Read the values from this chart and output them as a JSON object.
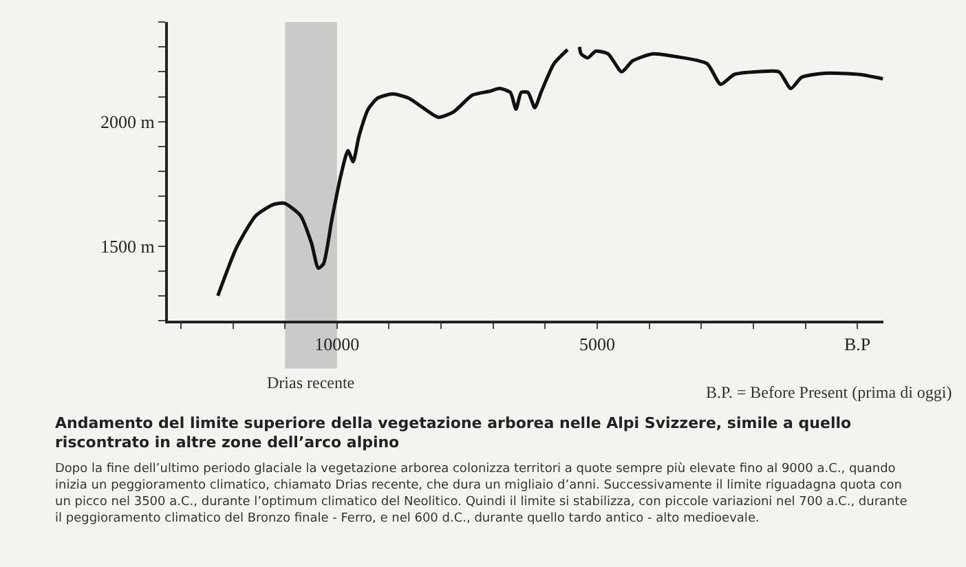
{
  "chart_data": {
    "type": "line",
    "title": "Andamento del limite superiore della vegetazione arborea nelle Alpi Svizzere, simile a quello riscontrato in altre zone dell’arco alpino",
    "subtitle": "Dopo la fine dell’ultimo periodo glaciale la vegetazione arborea colonizza territori a quote sempre più elevate fino al 9000 a.C., quando inizia un peggioramento climatico, chiamato Drias recente, che dura un migliaio d’anni. Successivamente il limite riguadagna quota con un picco nel 3500 a.C., durante l’optimum climatico del Neolitico. Quindi il limite si stabilizza, con piccole variazioni nel 700 a.C., durante il peggioramento climatico del Bronzo finale - Ferro, e nel 600 d.C., durante quello tardo antico - alto medioevale.",
    "annotations": [
      "B.P. = Before Present (prima di oggi)"
    ],
    "x": [
      12290,
      11930,
      11560,
      11220,
      11010,
      10700,
      10490,
      10360,
      10260,
      10100,
      9920,
      9790,
      9690,
      9580,
      9400,
      9220,
      8930,
      8620,
      8310,
      8050,
      7760,
      7400,
      7060,
      6880,
      6670,
      6560,
      6460,
      6330,
      6200,
      6070,
      5830,
      5570,
      5450,
      5340,
      5310,
      5180,
      5030,
      4790,
      4530,
      4320,
      3930,
      3490,
      2890,
      2630,
      2370,
      1930,
      1510,
      1280,
      1070,
      630,
      -50,
      -490
    ],
    "series": [
      {
        "color": "#111111",
        "values": [
          1300,
          1494,
          1622,
          1667,
          1672,
          1622,
          1511,
          1411,
          1428,
          1606,
          1789,
          1883,
          1839,
          1939,
          2050,
          2094,
          2111,
          2094,
          2050,
          2017,
          2039,
          2106,
          2122,
          2133,
          2117,
          2050,
          2117,
          2117,
          2056,
          2122,
          2233,
          2289,
          null,
          2300,
          2272,
          2256,
          2283,
          2272,
          2200,
          2244,
          2272,
          2261,
          2233,
          2150,
          2189,
          2200,
          2200,
          2133,
          2178,
          2194,
          2189,
          2172
        ]
      }
    ],
    "xlim": [
      13250,
      -500
    ],
    "xticks": [
      {
        "value": 13000,
        "label": null
      },
      {
        "value": 12000,
        "label": null
      },
      {
        "value": 11000,
        "label": null
      },
      {
        "value": 10000,
        "label": "10000"
      },
      {
        "value": 9000,
        "label": null
      },
      {
        "value": 8000,
        "label": null
      },
      {
        "value": 7000,
        "label": null
      },
      {
        "value": 6000,
        "label": null
      },
      {
        "value": 5000,
        "label": "5000"
      },
      {
        "value": 4000,
        "label": null
      },
      {
        "value": 3000,
        "label": null
      },
      {
        "value": 2000,
        "label": null
      },
      {
        "value": 1000,
        "label": null
      },
      {
        "value": 0,
        "label": "B.P"
      }
    ],
    "ylim": [
      1200,
      2400
    ],
    "yticks": [
      {
        "value": 1200,
        "label": null
      },
      {
        "value": 1300,
        "label": null
      },
      {
        "value": 1400,
        "label": null
      },
      {
        "value": 1500,
        "label": "1500 m"
      },
      {
        "value": 1600,
        "label": null
      },
      {
        "value": 1700,
        "label": null
      },
      {
        "value": 1800,
        "label": null
      },
      {
        "value": 1900,
        "label": null
      },
      {
        "value": 2000,
        "label": "2000 m"
      },
      {
        "value": 2100,
        "label": null
      },
      {
        "value": 2200,
        "label": null
      },
      {
        "value": 2300,
        "label": null
      },
      {
        "value": 2400,
        "label": null
      }
    ],
    "bands": [
      {
        "axis": "x",
        "from": 11000,
        "to": 10000,
        "label": "Drias recente",
        "color": "#999999"
      }
    ],
    "grid": false,
    "marker": "none",
    "line_style": "solid"
  }
}
